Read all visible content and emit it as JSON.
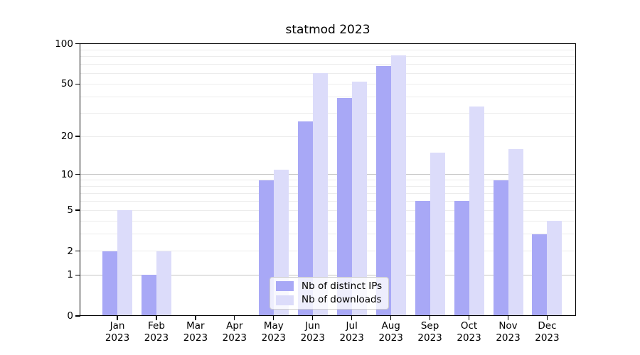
{
  "chart_data": {
    "type": "bar",
    "title": "statmod 2023",
    "x_tick_year": "2023",
    "x_tick_months": [
      "Jan",
      "Feb",
      "Mar",
      "Apr",
      "May",
      "Jun",
      "Jul",
      "Aug",
      "Sep",
      "Oct",
      "Nov",
      "Dec"
    ],
    "categories": [
      "Jan 2023",
      "Feb 2023",
      "Mar 2023",
      "Apr 2023",
      "May 2023",
      "Jun 2023",
      "Jul 2023",
      "Aug 2023",
      "Sep 2023",
      "Oct 2023",
      "Nov 2023",
      "Dec 2023"
    ],
    "series": [
      {
        "name": "Nb of distinct IPs",
        "color": "#a8a8f6",
        "values": [
          2,
          1,
          0,
          0,
          9,
          26,
          39,
          68,
          6,
          6,
          9,
          3
        ]
      },
      {
        "name": "Nb of downloads",
        "color": "#dcdcfa",
        "values": [
          5,
          2,
          0,
          0,
          11,
          60,
          52,
          82,
          15,
          34,
          16,
          4
        ]
      }
    ],
    "y_ticks": [
      0,
      1,
      2,
      5,
      10,
      20,
      50,
      100
    ],
    "ylim": [
      0,
      100
    ],
    "y_scale": "log1p",
    "grid": {
      "major_values": [
        1,
        10,
        100
      ],
      "minor_values": [
        2,
        3,
        4,
        5,
        6,
        7,
        8,
        9,
        20,
        30,
        40,
        50,
        60,
        70,
        80,
        90
      ],
      "major_color": "#c3c3c3",
      "minor_color": "#ececec"
    },
    "legend_position": "lower center",
    "axis_color": "#000000",
    "background_color": "#ffffff"
  }
}
